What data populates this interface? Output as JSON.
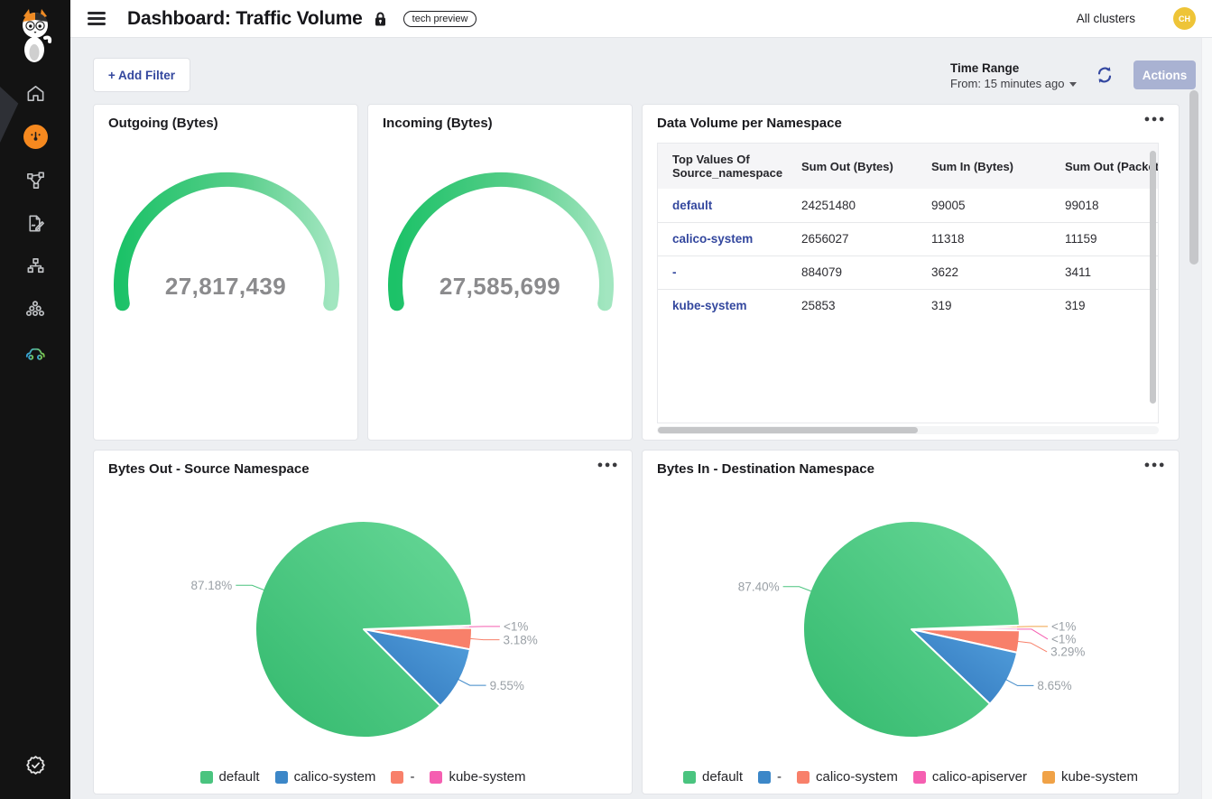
{
  "header": {
    "title": "Dashboard: Traffic Volume",
    "badge": "tech preview",
    "cluster_selector": "All clusters",
    "avatar_initials": "CH",
    "icons": [
      "menu-icon",
      "lock-icon"
    ]
  },
  "sidebar": {
    "logo": "calico-cat-logo",
    "items": [
      {
        "icon": "home-icon",
        "active": false
      },
      {
        "icon": "dashboards-gauge-icon",
        "active": true
      },
      {
        "icon": "service-graph-icon",
        "active": false
      },
      {
        "icon": "policies-edit-icon",
        "active": false
      },
      {
        "icon": "network-topology-icon",
        "active": false
      },
      {
        "icon": "cluster-nodes-icon",
        "active": false
      },
      {
        "icon": "vehicle-icon",
        "active": false
      }
    ],
    "footer_icon": "verified-badge-icon"
  },
  "toolbar": {
    "add_filter_label": "+ Add Filter",
    "time_range_label": "Time Range",
    "time_range_value": "From: 15 minutes ago",
    "refresh_icon": "refresh-icon",
    "actions_label": "Actions"
  },
  "table_card": {
    "title": "Data Volume per Namespace",
    "menu_icon": "ellipsis-icon",
    "columns": [
      "Top Values Of Source_namespace",
      "Sum Out (Bytes)",
      "Sum In (Bytes)",
      "Sum Out (Packet"
    ],
    "rows": [
      [
        "default",
        "24251480",
        "99005",
        "99018"
      ],
      [
        "calico-system",
        "2656027",
        "11318",
        "11159"
      ],
      [
        "-",
        "884079",
        "3622",
        "3411"
      ],
      [
        "kube-system",
        "25853",
        "319",
        "319"
      ]
    ]
  },
  "chart_data": [
    {
      "type": "gauge",
      "title": "Outgoing (Bytes)",
      "value": 27817439,
      "display": "27,817,439",
      "arc_color_start": "#1cc268",
      "arc_color_end": "#a2e6c0"
    },
    {
      "type": "gauge",
      "title": "Incoming (Bytes)",
      "value": 27585699,
      "display": "27,585,699",
      "arc_color_start": "#1cc268",
      "arc_color_end": "#a2e6c0"
    },
    {
      "type": "pie",
      "title": "Bytes Out - Source Namespace",
      "legend_position": "bottom",
      "slices": [
        {
          "label": "default",
          "pct": 87.18,
          "pct_label": "87.18%",
          "color": "#4ac47f",
          "color_start": "#33b96d",
          "color_end": "#68d898"
        },
        {
          "label": "calico-system",
          "pct": 9.55,
          "pct_label": "9.55%",
          "color": "#3c87c8",
          "color_start": "#2f74ba",
          "color_end": "#53a0dd"
        },
        {
          "label": "-",
          "pct": 3.18,
          "pct_label": "3.18%",
          "color": "#f8806a"
        },
        {
          "label": "kube-system",
          "pct": 0.09,
          "pct_label": "<1%",
          "color": "#f55fb1"
        }
      ]
    },
    {
      "type": "pie",
      "title": "Bytes In - Destination Namespace",
      "legend_position": "bottom",
      "slices": [
        {
          "label": "default",
          "pct": 87.4,
          "pct_label": "87.40%",
          "color": "#4ac47f",
          "color_start": "#33b96d",
          "color_end": "#68d898"
        },
        {
          "label": "-",
          "pct": 8.65,
          "pct_label": "8.65%",
          "color": "#3c87c8",
          "color_start": "#2f74ba",
          "color_end": "#53a0dd"
        },
        {
          "label": "calico-system",
          "pct": 3.29,
          "pct_label": "3.29%",
          "color": "#f8806a"
        },
        {
          "label": "calico-apiserver",
          "pct": 0.33,
          "pct_label": "<1%",
          "color": "#f55fb1"
        },
        {
          "label": "kube-system",
          "pct": 0.33,
          "pct_label": "<1%",
          "color": "#f0a247"
        }
      ]
    }
  ]
}
